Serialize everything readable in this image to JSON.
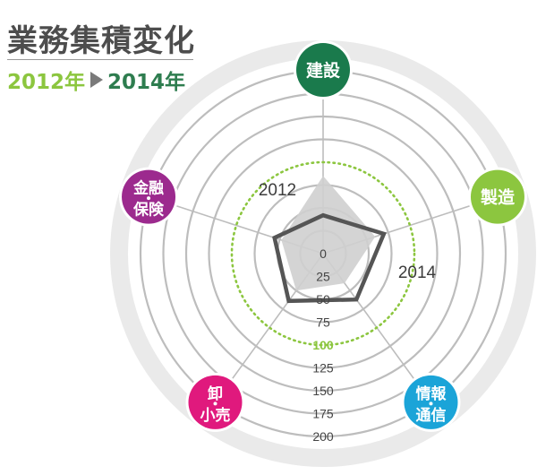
{
  "header": {
    "title": "業務集積変化",
    "year_from": "2012年",
    "year_to": "2014年"
  },
  "chart_data": {
    "type": "radar",
    "title": "業務集積変化",
    "axes": [
      {
        "label": [
          "建設"
        ],
        "color": "#1a7a4c"
      },
      {
        "label": [
          "製造"
        ],
        "color": "#8cc63f"
      },
      {
        "label": [
          "情報",
          "通信"
        ],
        "color": "#1ba4d8"
      },
      {
        "label": [
          "卸",
          "小売"
        ],
        "color": "#e0197d"
      },
      {
        "label": [
          "金融",
          "保険"
        ],
        "color": "#9c2a8e"
      }
    ],
    "radial_ticks": [
      "0",
      "25",
      "50",
      "75",
      "100",
      "125",
      "150",
      "175",
      "200"
    ],
    "highlight_tick": "100",
    "rmax": 200,
    "series": [
      {
        "name": "2012",
        "values": [
          85,
          60,
          40,
          50,
          48
        ],
        "fill": "#cfcfcf"
      },
      {
        "name": "2014",
        "values": [
          42,
          70,
          62,
          64,
          56
        ],
        "stroke": "#555555"
      }
    ],
    "colors": {
      "outer_ring": "#eaeaea",
      "inner_disc": "#ffffff",
      "grid": "#bdbdbd",
      "reference_ring": "#8cc63f",
      "tick_text": "#444444"
    }
  }
}
